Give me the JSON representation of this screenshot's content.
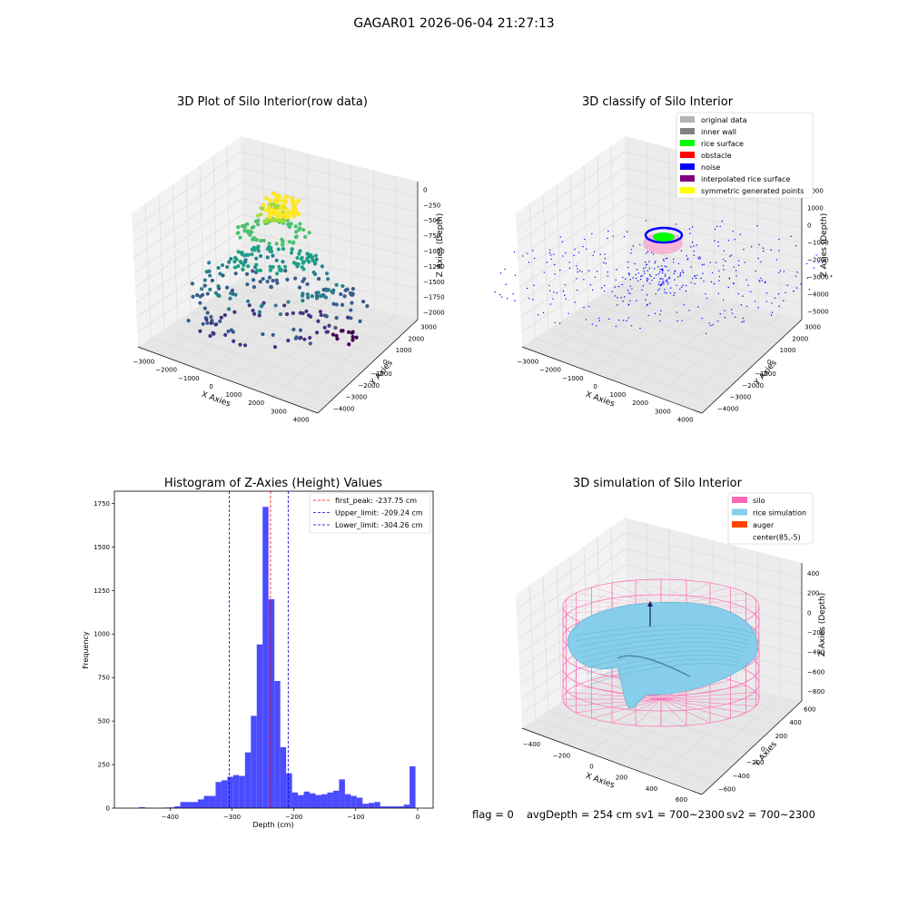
{
  "figure": {
    "suptitle": "GAGAR01 2026-06-04 21:27:13"
  },
  "colors": {
    "hist_bar": "#4b4bff",
    "peak_line": "#ff0000",
    "limit_line": "#0000cc",
    "grid": "#d9d9d9",
    "pane": "#f2f2f2",
    "silo_mesh": "#ff69b4",
    "rice_surface": "#87ceeb",
    "auger": "#ff4500"
  },
  "panels": {
    "raw": {
      "title": "3D Plot of Silo Interior(row data)",
      "x_label": "X Axies",
      "y_label": "Y Axies",
      "z_label": "Z Axies (Depth)",
      "x_ticks": [
        "−3000",
        "−2000",
        "−1000",
        "0",
        "1000",
        "2000",
        "3000",
        "4000"
      ],
      "y_ticks": [
        "3000",
        "2000",
        "1000",
        "0",
        "−1000",
        "−2000",
        "−3000",
        "−4000"
      ],
      "z_ticks": [
        "0",
        "−250",
        "−500",
        "−750",
        "−1000",
        "−1250",
        "−1500",
        "−1750",
        "−2000"
      ]
    },
    "classify": {
      "title": "3D classify of Silo Interior",
      "x_label": "X Axies",
      "y_label": "Y Axies",
      "z_label": "Z Axies (Depth)",
      "x_ticks": [
        "−3000",
        "−2000",
        "−1000",
        "0",
        "1000",
        "2000",
        "3000",
        "4000"
      ],
      "y_ticks": [
        "3000",
        "2000",
        "1000",
        "0",
        "−1000",
        "−2000",
        "−3000",
        "−4000"
      ],
      "z_ticks": [
        "2000",
        "1000",
        "0",
        "−1000",
        "−2000",
        "−3000",
        "−4000",
        "−5000"
      ],
      "legend": [
        {
          "label": "original data",
          "color": "#b3b3b3"
        },
        {
          "label": "inner wall",
          "color": "#808080"
        },
        {
          "label": "rice surface",
          "color": "#00ff00"
        },
        {
          "label": "obstacle",
          "color": "#ff0000"
        },
        {
          "label": "noise",
          "color": "#0000ff"
        },
        {
          "label": "interpolated rice surface",
          "color": "#800080"
        },
        {
          "label": "symmetric generated points",
          "color": "#ffff00"
        }
      ]
    },
    "simulation": {
      "title": "3D simulation of Silo Interior",
      "x_label": "X Axies",
      "y_label": "Y Axies",
      "z_label": "Z Axies (Depth)",
      "x_ticks": [
        "−400",
        "−200",
        "0",
        "200",
        "400",
        "600"
      ],
      "y_ticks": [
        "600",
        "400",
        "200",
        "0",
        "−200",
        "−400",
        "−600"
      ],
      "z_ticks": [
        "400",
        "200",
        "0",
        "−200",
        "−400",
        "−600",
        "−800"
      ],
      "legend": [
        {
          "label": "silo",
          "color": "#ff69b4"
        },
        {
          "label": "rice simulation",
          "color": "#87ceeb"
        },
        {
          "label": "auger",
          "color": "#ff4500"
        },
        {
          "label": "center(85,-5)",
          "color": ""
        }
      ]
    }
  },
  "footer": {
    "flag": "flag = 0",
    "avg_depth": "avgDepth = 254 cm",
    "sv1": "sv1 = 700~2300",
    "sv2": "sv2 = 700~2300"
  },
  "chart_data": [
    {
      "type": "scatter",
      "title": "3D Plot of Silo Interior(row data)",
      "xlabel": "X Axies",
      "ylabel": "Y Axies",
      "zlabel": "Z Axies (Depth)",
      "xlim": [
        -3500,
        4500
      ],
      "ylim": [
        -4500,
        3500
      ],
      "zlim": [
        -2100,
        100
      ],
      "grid": true,
      "colormap": "viridis (by depth)"
    },
    {
      "type": "scatter",
      "title": "3D classify of Silo Interior",
      "xlabel": "X Axies",
      "ylabel": "Y Axies",
      "zlabel": "Z Axies (Depth)",
      "xlim": [
        -3500,
        4500
      ],
      "ylim": [
        -4500,
        3500
      ],
      "zlim": [
        -5200,
        2200
      ],
      "grid": true,
      "legend_position": "top-right",
      "series": [
        {
          "name": "original data"
        },
        {
          "name": "inner wall"
        },
        {
          "name": "rice surface"
        },
        {
          "name": "obstacle"
        },
        {
          "name": "noise"
        },
        {
          "name": "interpolated rice surface"
        },
        {
          "name": "symmetric generated points"
        }
      ]
    },
    {
      "type": "bar",
      "title": "Histogram of Z-Axies (Height) Values",
      "xlabel": "Depth (cm)",
      "ylabel": "Frequency",
      "xlim": [
        -490,
        25
      ],
      "ylim": [
        0,
        1820
      ],
      "x_ticks": [
        -400,
        -300,
        -200,
        -100,
        0
      ],
      "y_ticks": [
        0,
        250,
        500,
        750,
        1000,
        1250,
        1500,
        1750
      ],
      "bin_width": 9.5,
      "bins_start": [
        -450,
        -440.5,
        -431,
        -421.5,
        -412,
        -402.5,
        -393,
        -383.5,
        -374,
        -364.5,
        -355,
        -345.5,
        -336,
        -326.5,
        -317,
        -307.5,
        -298,
        -288.5,
        -279,
        -269.5,
        -260,
        -250.5,
        -241,
        -231.5,
        -222,
        -212.5,
        -203,
        -193.5,
        -184,
        -174.5,
        -165,
        -155.5,
        -146,
        -136.5,
        -127,
        -117.5,
        -108,
        -98.5,
        -89,
        -79.5,
        -70,
        -60.5,
        -51,
        -41.5,
        -32,
        -22.5,
        -13,
        -3.5
      ],
      "values": [
        5,
        2,
        0,
        0,
        3,
        4,
        10,
        35,
        35,
        35,
        50,
        70,
        70,
        150,
        160,
        180,
        190,
        185,
        320,
        530,
        940,
        1730,
        1200,
        730,
        350,
        200,
        90,
        75,
        95,
        85,
        75,
        80,
        90,
        100,
        165,
        80,
        70,
        60,
        25,
        30,
        35,
        10,
        10,
        10,
        10,
        20,
        240,
        0
      ],
      "legend_position": "top-right",
      "vlines": [
        {
          "label": "first_peak: -237.75 cm",
          "x": -237.75,
          "style": "dashed",
          "color": "#ff0000"
        },
        {
          "label": "Upper_limit: -209.24 cm",
          "x": -209.24,
          "style": "dashed",
          "color": "#0000cc"
        },
        {
          "label": "Lower_limit: -304.26 cm",
          "x": -304.26,
          "style": "dashed",
          "color": "#0000cc"
        }
      ]
    },
    {
      "type": "surface",
      "title": "3D simulation of Silo Interior",
      "xlabel": "X Axies",
      "ylabel": "Y Axies",
      "zlabel": "Z Axies (Depth)",
      "xlim": [
        -550,
        750
      ],
      "ylim": [
        -650,
        700
      ],
      "zlim": [
        -900,
        450
      ],
      "grid": true,
      "legend_position": "top-right",
      "series": [
        {
          "name": "silo"
        },
        {
          "name": "rice simulation"
        },
        {
          "name": "auger"
        },
        {
          "name": "center(85,-5)"
        }
      ]
    }
  ]
}
